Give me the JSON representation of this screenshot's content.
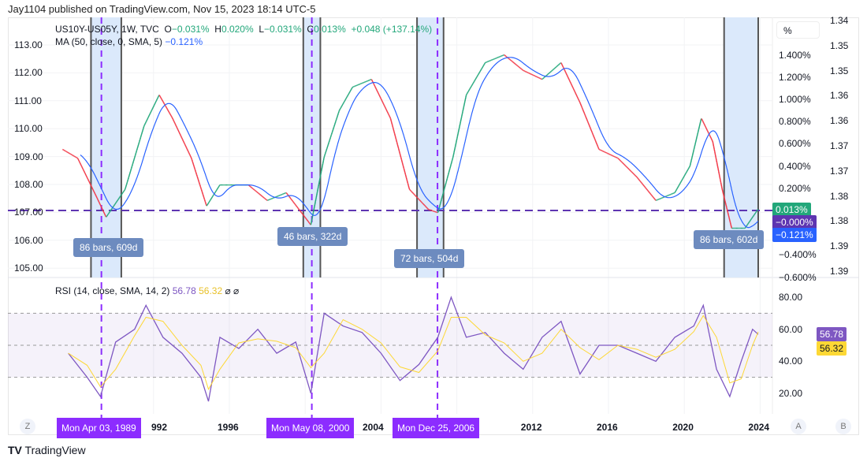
{
  "header": {
    "published": "Jay1104 published on TradingView.com, Nov 15, 2023 18:14 UTC-5"
  },
  "legend": {
    "symbol": "US10Y-US05Y, 1W, TVC",
    "o_label": "O",
    "o": "−0.031%",
    "h_label": "H",
    "h": "0.020%",
    "l_label": "L",
    "l": "−0.031%",
    "c_label": "C",
    "c": "0.013%",
    "change": "+0.048 (+137.14%)",
    "ma": "MA (50, close, 0, SMA, 5)",
    "ma_value": "−0.121%"
  },
  "rsi_legend": {
    "label": "RSI (14, close, SMA, 14, 2)",
    "rsi": "56.78",
    "sma": "56.32",
    "icons": "⌀ ⌀"
  },
  "axis": {
    "unit_button": "%",
    "left_ticks": [
      "113.00",
      "112.00",
      "111.00",
      "110.00",
      "109.00",
      "108.00",
      "107.00",
      "106.00",
      "105.00"
    ],
    "percent_ticks": [
      "1.400%",
      "1.200%",
      "1.000%",
      "0.800%",
      "0.600%",
      "0.400%",
      "0.200%",
      "−0.400%",
      "−0.600%"
    ],
    "right_ticks": [
      "1.34",
      "1.35",
      "1.35",
      "1.36",
      "1.36",
      "1.37",
      "1.37",
      "1.38",
      "1.38",
      "1.39",
      "1.39"
    ],
    "rsi_ticks": [
      "80.00",
      "60.00",
      "40.00",
      "20.00"
    ],
    "x_ticks": [
      "992",
      "1996",
      "2004",
      "2012",
      "2016",
      "2020",
      "2024"
    ],
    "z_button": "Z",
    "a_button": "A",
    "b_button": "B"
  },
  "tags": {
    "close": "0.013%",
    "zero": "−0.000%",
    "ma": "−0.121%",
    "rsi": "56.78",
    "rsi_sma": "56.32"
  },
  "date_labels": [
    "Mon Apr 03, 1989",
    "Mon May 08, 2000",
    "Mon Dec 25, 2006"
  ],
  "ranges": [
    "86 bars, 609d",
    "46 bars, 322d",
    "72 bars, 504d",
    "86 bars, 602d"
  ],
  "footer": {
    "brand": "TradingView"
  },
  "colors": {
    "up": "#22a77a",
    "down": "#f23645",
    "ma": "#2962ff",
    "rsi": "#7e57c2",
    "rsi_sma": "#fdd835",
    "range_fill": "#dbe9fb",
    "date_line": "#8c2cff"
  },
  "chart_data": {
    "type": "line",
    "title": "US10Y-US05Y, 1W, TVC",
    "ylabel": "%",
    "ylim": [
      -0.6,
      1.5
    ],
    "grid": true,
    "series": [
      {
        "name": "US10Y-US05Y",
        "x": [
          1987.2,
          1988,
          1989,
          1989.5,
          1990.5,
          1991.5,
          1992.3,
          1993,
          1994,
          1994.8,
          1995.5,
          1997,
          1998,
          1999,
          2000.3,
          2001,
          2001.8,
          2002.5,
          2003.5,
          2004.5,
          2005.5,
          2006.5,
          2007,
          2007.8,
          2008.5,
          2009.5,
          2010.5,
          2011.5,
          2012.5,
          2013.5,
          2014.5,
          2015.5,
          2016.5,
          2017.5,
          2018.5,
          2019.5,
          2020.3,
          2020.9,
          2021.5,
          2022,
          2022.5,
          2023.2,
          2023.9
        ],
        "values": [
          0.55,
          0.47,
          0.12,
          -0.06,
          0.19,
          0.76,
          1.04,
          0.83,
          0.47,
          0.04,
          0.23,
          0.23,
          0.09,
          0.16,
          -0.13,
          0.48,
          0.9,
          1.11,
          1.18,
          0.83,
          0.19,
          0.01,
          -0.02,
          0.48,
          1.04,
          1.33,
          1.4,
          1.26,
          1.18,
          1.33,
          0.97,
          0.55,
          0.47,
          0.3,
          0.09,
          0.16,
          0.4,
          0.83,
          0.62,
          0.19,
          -0.16,
          -0.16,
          0.013
        ]
      },
      {
        "name": "MA (50, close, 0, SMA, 5)",
        "last": -0.121
      }
    ],
    "rsi": {
      "ylim": [
        10,
        85
      ],
      "bands": [
        30,
        50,
        70
      ],
      "x": [
        1987.5,
        1988.5,
        1989.2,
        1990,
        1991,
        1991.6,
        1992.5,
        1993.5,
        1994.5,
        1994.9,
        1995.5,
        1996.5,
        1997.5,
        1998.5,
        1999.5,
        2000.3,
        2001,
        2002,
        2003,
        2004,
        2005,
        2006,
        2007,
        2007.7,
        2008.5,
        2009.5,
        2010.5,
        2011.5,
        2012.5,
        2013.5,
        2014.5,
        2015.5,
        2016.5,
        2017.5,
        2018.5,
        2019.5,
        2020.5,
        2021,
        2021.7,
        2022.4,
        2023,
        2023.6,
        2023.9
      ],
      "values": [
        45,
        30,
        18,
        52,
        60,
        75,
        55,
        45,
        30,
        15,
        55,
        48,
        60,
        45,
        52,
        20,
        70,
        62,
        58,
        45,
        28,
        38,
        55,
        80,
        55,
        58,
        45,
        35,
        55,
        65,
        32,
        50,
        50,
        45,
        40,
        55,
        62,
        75,
        35,
        18,
        40,
        60,
        56.78
      ]
    },
    "highlighted_ranges": [
      [
        1988.7,
        1990.3
      ],
      [
        1999.9,
        2000.8
      ],
      [
        2005.9,
        2007.3
      ],
      [
        2022.1,
        2023.9
      ]
    ],
    "date_markers": [
      1989.25,
      2000.35,
      2006.98
    ]
  }
}
